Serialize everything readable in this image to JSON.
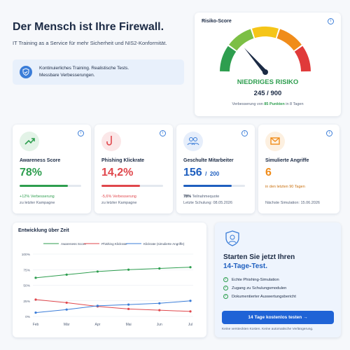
{
  "hero": {
    "title": "Der Mensch ist Ihre Firewall.",
    "subtitle": "IT Training as a Service für mehr Sicherheit und NIS2-Konformität.",
    "note_lines": [
      "Kontinuierliches Training. Realistische Tests.",
      "Messbare Verbesserungen."
    ]
  },
  "risk": {
    "title": "Risiko-Score",
    "level": "NIEDRIGES RISIKO",
    "score": 245,
    "separator": "/",
    "max": 900,
    "improvement": [
      "Verbesserung von ",
      "85 Punkten",
      " in 8 Tagen"
    ]
  },
  "metrics": [
    {
      "title": "Awareness Score",
      "value": 78,
      "value_label": "78%",
      "lines": [
        "+12% Verbesserung",
        "zu letzter Kampagne"
      ]
    },
    {
      "title": "Phishing Klickrate",
      "value": 14.2,
      "value_label": "14,2%",
      "lines": [
        "-5,6% Verbesserung",
        "zu letzter Kampagne"
      ]
    },
    {
      "title": "Geschulte Mitarbeiter",
      "value": 156,
      "separator": "/",
      "total": 200,
      "lines": [
        "78%",
        " Teilnahmequote",
        "Letzte Schulung: 08.05.2026"
      ]
    },
    {
      "title": "Simulierte Angriffe",
      "value": 6,
      "lines": [
        "in den letzten 90 Tagen",
        "Nächste Simulation: 15.06.2026"
      ]
    }
  ],
  "chart_data": {
    "type": "line",
    "title": "Entwicklung über Zeit",
    "categories": [
      "Feb",
      "Mär",
      "Apr",
      "Mai",
      "Jun",
      "Jul"
    ],
    "series": [
      {
        "name": "Awareness Score",
        "color": "#2e9e4f",
        "values": [
          62,
          67,
          72,
          75,
          77,
          79
        ]
      },
      {
        "name": "Phishing Klickrate",
        "color": "#e0474c",
        "values": [
          27,
          22,
          16,
          12,
          10,
          8
        ]
      },
      {
        "name": "Klickrate (simulierte Angriffe)",
        "color": "#3b7dd8",
        "values": [
          6,
          11,
          17,
          19,
          21,
          25
        ]
      }
    ],
    "ylim": [
      0,
      100
    ],
    "yticks": [
      {
        "value": 0,
        "label": "0%"
      },
      {
        "value": 25,
        "label": "25%"
      },
      {
        "value": 50,
        "label": "50%"
      },
      {
        "value": 75,
        "label": "75%"
      },
      {
        "value": 100,
        "label": "100%"
      }
    ],
    "grid": true
  },
  "cta": {
    "title_lines": [
      "Starten Sie jetzt Ihren",
      "14-Tage-Test."
    ],
    "items": [
      "Echte Phishing-Simulation",
      "Zugang zu Schulungsmodulen",
      "Dokumentierter Auswertungsbericht"
    ],
    "button": "14 Tage kostenlos testen",
    "footnote": "Keine versteckten Kosten. Keine automatische Verlängerung."
  }
}
